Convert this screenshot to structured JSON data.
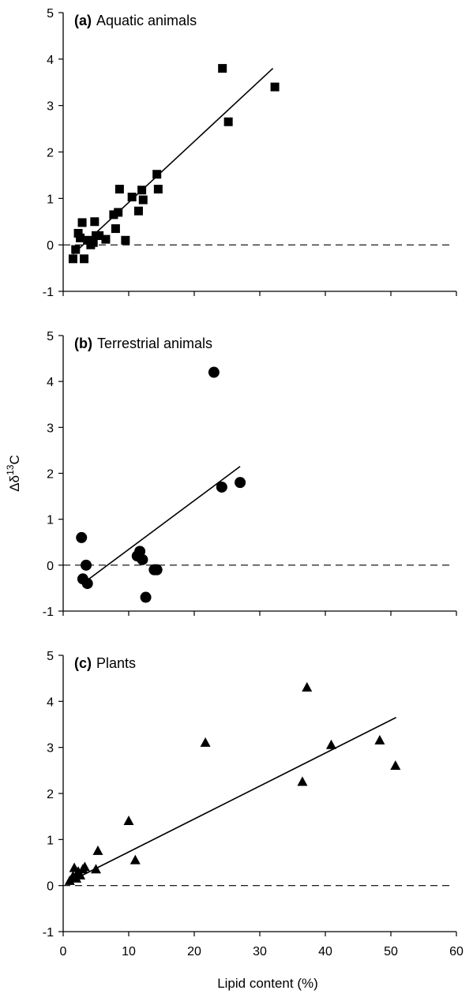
{
  "chart_data": [
    {
      "type": "scatter",
      "panel_label": "(a)",
      "title": "Aquatic animals",
      "marker": "square",
      "xlim": [
        0,
        60
      ],
      "ylim": [
        -1,
        5
      ],
      "xticks": [
        0,
        10,
        20,
        30,
        40,
        50,
        60
      ],
      "yticks": [
        -1,
        0,
        1,
        2,
        3,
        4,
        5
      ],
      "show_xtick_labels": false,
      "reference_line_y": 0,
      "points": [
        {
          "x": 1.5,
          "y": -0.3
        },
        {
          "x": 1.9,
          "y": -0.1
        },
        {
          "x": 2.3,
          "y": 0.25
        },
        {
          "x": 2.6,
          "y": 0.15
        },
        {
          "x": 2.9,
          "y": 0.48
        },
        {
          "x": 3.2,
          "y": -0.3
        },
        {
          "x": 3.7,
          "y": 0.1
        },
        {
          "x": 4.2,
          "y": 0.0
        },
        {
          "x": 4.6,
          "y": 0.05
        },
        {
          "x": 4.8,
          "y": 0.5
        },
        {
          "x": 5.0,
          "y": 0.2
        },
        {
          "x": 5.5,
          "y": 0.2
        },
        {
          "x": 6.5,
          "y": 0.12
        },
        {
          "x": 7.7,
          "y": 0.65
        },
        {
          "x": 8.0,
          "y": 0.35
        },
        {
          "x": 8.4,
          "y": 0.7
        },
        {
          "x": 8.6,
          "y": 1.2
        },
        {
          "x": 9.5,
          "y": 0.1
        },
        {
          "x": 10.5,
          "y": 1.03
        },
        {
          "x": 11.5,
          "y": 0.73
        },
        {
          "x": 12.0,
          "y": 1.18
        },
        {
          "x": 12.2,
          "y": 0.97
        },
        {
          "x": 14.3,
          "y": 1.52
        },
        {
          "x": 14.5,
          "y": 1.2
        },
        {
          "x": 24.3,
          "y": 3.8
        },
        {
          "x": 25.2,
          "y": 2.65
        },
        {
          "x": 32.3,
          "y": 3.4
        }
      ],
      "fit_line": {
        "x": [
          1.5,
          32.0
        ],
        "y": [
          -0.2,
          3.8
        ]
      }
    },
    {
      "type": "scatter",
      "panel_label": "(b)",
      "title": "Terrestrial animals",
      "marker": "circle",
      "xlim": [
        0,
        60
      ],
      "ylim": [
        -1,
        5
      ],
      "xticks": [
        0,
        10,
        20,
        30,
        40,
        50,
        60
      ],
      "yticks": [
        -1,
        0,
        1,
        2,
        3,
        4,
        5
      ],
      "show_xtick_labels": false,
      "ylabel": "Δδ13C",
      "reference_line_y": 0,
      "points": [
        {
          "x": 2.8,
          "y": 0.6
        },
        {
          "x": 3.0,
          "y": -0.3
        },
        {
          "x": 3.5,
          "y": 0.0
        },
        {
          "x": 3.7,
          "y": -0.4
        },
        {
          "x": 11.3,
          "y": 0.2
        },
        {
          "x": 11.7,
          "y": 0.3
        },
        {
          "x": 12.1,
          "y": 0.12
        },
        {
          "x": 12.6,
          "y": -0.7
        },
        {
          "x": 13.9,
          "y": -0.1
        },
        {
          "x": 14.3,
          "y": -0.1
        },
        {
          "x": 23.0,
          "y": 4.2
        },
        {
          "x": 24.2,
          "y": 1.7
        },
        {
          "x": 27.0,
          "y": 1.8
        }
      ],
      "fit_line": {
        "x": [
          3.0,
          27.0
        ],
        "y": [
          -0.4,
          2.15
        ]
      }
    },
    {
      "type": "scatter",
      "panel_label": "(c)",
      "title": "Plants",
      "marker": "triangle",
      "xlim": [
        0,
        60
      ],
      "ylim": [
        -1,
        5
      ],
      "xticks": [
        0,
        10,
        20,
        30,
        40,
        50,
        60
      ],
      "yticks": [
        -1,
        0,
        1,
        2,
        3,
        4,
        5
      ],
      "show_xtick_labels": true,
      "xlabel": "Lipid content (%)",
      "reference_line_y": 0,
      "points": [
        {
          "x": 1.0,
          "y": 0.1
        },
        {
          "x": 1.5,
          "y": 0.2
        },
        {
          "x": 1.7,
          "y": 0.38
        },
        {
          "x": 2.0,
          "y": 0.15
        },
        {
          "x": 2.3,
          "y": 0.3
        },
        {
          "x": 2.6,
          "y": 0.22
        },
        {
          "x": 3.0,
          "y": 0.35
        },
        {
          "x": 3.3,
          "y": 0.4
        },
        {
          "x": 5.0,
          "y": 0.35
        },
        {
          "x": 5.3,
          "y": 0.75
        },
        {
          "x": 10.0,
          "y": 1.4
        },
        {
          "x": 11.0,
          "y": 0.55
        },
        {
          "x": 21.7,
          "y": 3.1
        },
        {
          "x": 36.5,
          "y": 2.25
        },
        {
          "x": 37.2,
          "y": 4.3
        },
        {
          "x": 40.9,
          "y": 3.05
        },
        {
          "x": 48.3,
          "y": 3.15
        },
        {
          "x": 50.7,
          "y": 2.6
        }
      ],
      "fit_line": {
        "x": [
          0.5,
          50.8
        ],
        "y": [
          0.05,
          3.65
        ]
      }
    }
  ]
}
